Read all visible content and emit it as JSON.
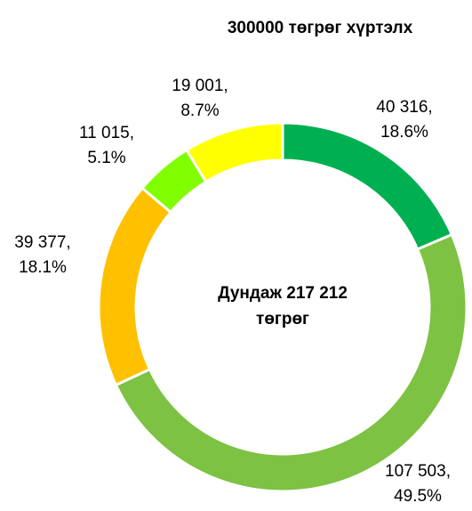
{
  "chart_data": {
    "type": "donut",
    "title": "300000 төгрөг хүртэлх",
    "center_text": [
      "Дундаж 217 212",
      "төгрөг"
    ],
    "values": [
      40316,
      107503,
      39377,
      11015,
      19001
    ],
    "value_labels": [
      "40 316,",
      "107 503,",
      "39 377,",
      "11 015,",
      "19 001,"
    ],
    "percents": [
      18.6,
      49.5,
      18.1,
      5.1,
      8.7
    ],
    "percent_labels": [
      "18.6%",
      "49.5%",
      "18.1%",
      "5.1%",
      "8.7%"
    ],
    "colors": [
      "#00b050",
      "#7dc242",
      "#ffc000",
      "#80ff00",
      "#ffff00"
    ]
  }
}
